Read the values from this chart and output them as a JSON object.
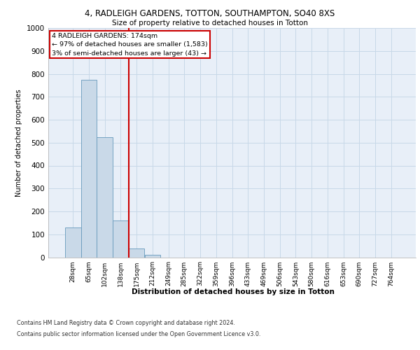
{
  "title1": "4, RADLEIGH GARDENS, TOTTON, SOUTHAMPTON, SO40 8XS",
  "title2": "Size of property relative to detached houses in Totton",
  "xlabel": "Distribution of detached houses by size in Totton",
  "ylabel": "Number of detached properties",
  "footnote1": "Contains HM Land Registry data © Crown copyright and database right 2024.",
  "footnote2": "Contains public sector information licensed under the Open Government Licence v3.0.",
  "categories": [
    "28sqm",
    "65sqm",
    "102sqm",
    "138sqm",
    "175sqm",
    "212sqm",
    "249sqm",
    "285sqm",
    "322sqm",
    "359sqm",
    "396sqm",
    "433sqm",
    "469sqm",
    "506sqm",
    "543sqm",
    "580sqm",
    "616sqm",
    "653sqm",
    "690sqm",
    "727sqm",
    "764sqm"
  ],
  "values": [
    130,
    775,
    525,
    160,
    38,
    12,
    0,
    0,
    0,
    0,
    0,
    0,
    0,
    0,
    0,
    0,
    0,
    0,
    0,
    0,
    0
  ],
  "bar_color": "#c9d9e8",
  "bar_edge_color": "#6699bb",
  "property_line_x": 3.5,
  "property_line_color": "#cc0000",
  "annotation_text": "4 RADLEIGH GARDENS: 174sqm\n← 97% of detached houses are smaller (1,583)\n3% of semi-detached houses are larger (43) →",
  "annotation_box_color": "#cc0000",
  "ylim": [
    0,
    1000
  ],
  "yticks": [
    0,
    100,
    200,
    300,
    400,
    500,
    600,
    700,
    800,
    900,
    1000
  ],
  "grid_color": "#c8d8e8",
  "bg_color": "#e8eff8",
  "fig_bg_color": "#ffffff"
}
